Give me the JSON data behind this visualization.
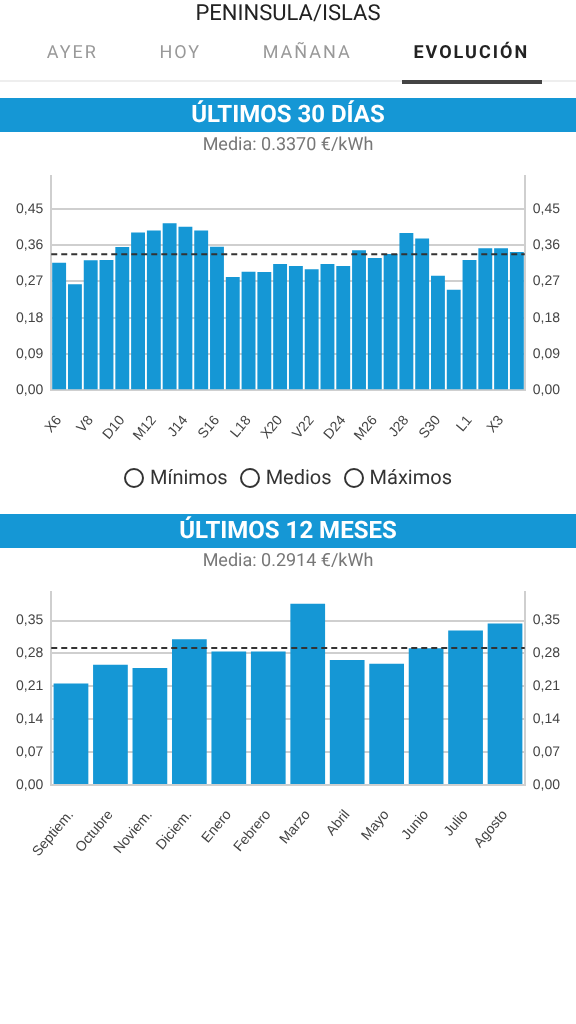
{
  "chart_data": [
    {
      "type": "other",
      "title": "PENINSULA/ISLAS",
      "annotations": [
        "AYER",
        "HOY",
        "MAÑANA",
        "EVOLUCIÓN"
      ]
    },
    {
      "type": "bar",
      "title": "ÚLTIMOS 30 DÍAS",
      "subtitle": "Media: 0.3370 €/kWh",
      "categories": [
        "X6",
        null,
        "V8",
        null,
        "D10",
        null,
        "M12",
        null,
        "J14",
        null,
        "S16",
        null,
        "L18",
        null,
        "X20",
        null,
        "V22",
        null,
        "D24",
        null,
        "M26",
        null,
        "J28",
        null,
        "S30",
        null,
        "L1",
        null,
        "X3",
        null
      ],
      "values": [
        0.316,
        0.263,
        0.322,
        0.323,
        0.355,
        0.391,
        0.396,
        0.414,
        0.405,
        0.396,
        0.356,
        0.281,
        0.294,
        0.293,
        0.313,
        0.308,
        0.3,
        0.313,
        0.308,
        0.347,
        0.328,
        0.338,
        0.39,
        0.376,
        0.284,
        0.249,
        0.323,
        0.352,
        0.352,
        0.343
      ],
      "color": "#1597d5",
      "ylim": [
        0,
        0.53
      ],
      "yticks": [
        {
          "value": 0,
          "label": "0,00"
        },
        {
          "value": 0.09,
          "label": "0,09"
        },
        {
          "value": 0.18,
          "label": "0,18"
        },
        {
          "value": 0.27,
          "label": "0,27"
        },
        {
          "value": 0.36,
          "label": "0,36"
        },
        {
          "value": 0.45,
          "label": "0,45"
        }
      ],
      "y2lim": [
        0,
        0.53
      ],
      "y2ticks": [
        {
          "value": 0,
          "label": "0,00"
        },
        {
          "value": 0.09,
          "label": "0,09"
        },
        {
          "value": 0.18,
          "label": "0,18"
        },
        {
          "value": 0.27,
          "label": "0,27"
        },
        {
          "value": 0.36,
          "label": "0,36"
        },
        {
          "value": 0.45,
          "label": "0,45"
        }
      ],
      "ref_lines": [
        {
          "axis": "y",
          "value": 0.337,
          "color": "#333333",
          "line_style": "dashed"
        }
      ],
      "grid": "y",
      "annotations": [
        "Mínimos",
        "Medios",
        "Máximos"
      ]
    },
    {
      "type": "bar",
      "title": "ÚLTIMOS 12 MESES",
      "subtitle": "Media: 0.2914 €/kWh",
      "categories": [
        "Septiem.",
        "Octubre",
        "Noviem.",
        "Diciem.",
        "Enero",
        "Febrero",
        "Marzo",
        "Abril",
        "Mayo",
        "Junio",
        "Julio",
        "Agosto"
      ],
      "values": [
        0.216,
        0.256,
        0.249,
        0.31,
        0.284,
        0.284,
        0.386,
        0.266,
        0.258,
        0.291,
        0.329,
        0.344
      ],
      "color": "#1597d5",
      "ylim": [
        0,
        0.41
      ],
      "yticks": [
        {
          "value": 0,
          "label": "0,00"
        },
        {
          "value": 0.07,
          "label": "0,07"
        },
        {
          "value": 0.14,
          "label": "0,14"
        },
        {
          "value": 0.21,
          "label": "0,21"
        },
        {
          "value": 0.28,
          "label": "0,28"
        },
        {
          "value": 0.35,
          "label": "0,35"
        }
      ],
      "y2lim": [
        0,
        0.41
      ],
      "y2ticks": [
        {
          "value": 0,
          "label": "0,00"
        },
        {
          "value": 0.07,
          "label": "0,07"
        },
        {
          "value": 0.14,
          "label": "0,14"
        },
        {
          "value": 0.21,
          "label": "0,21"
        },
        {
          "value": 0.28,
          "label": "0,28"
        },
        {
          "value": 0.35,
          "label": "0,35"
        }
      ],
      "ref_lines": [
        {
          "axis": "y",
          "value": 0.2914,
          "color": "#333333",
          "line_style": "dashed"
        }
      ],
      "grid": "y"
    }
  ]
}
